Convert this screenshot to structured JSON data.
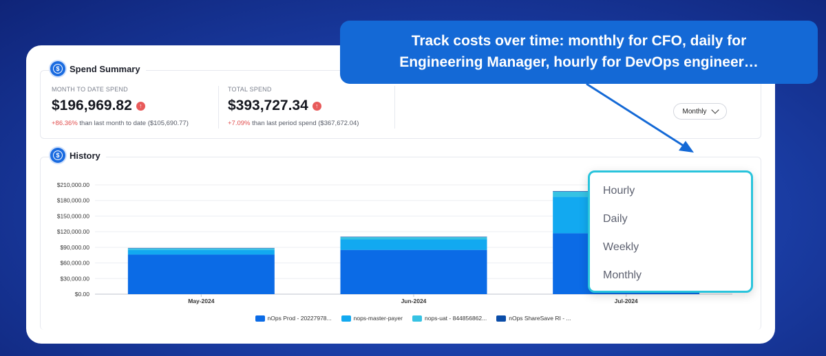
{
  "colors": {
    "series1": "#0b6be6",
    "series2": "#12a9f0",
    "series3": "#36c2e3",
    "series4": "#0a4ca8",
    "accent": "#1469d6",
    "menu_border": "#29c4dc",
    "negative": "#e14c4c"
  },
  "callout": {
    "line1": "Track costs over time: monthly for CFO, daily for",
    "line2": "Engineering Manager, hourly for DevOps engineer…"
  },
  "summary": {
    "title": "Spend Summary",
    "icon": "dollar-coin-icon",
    "month_to_date": {
      "label": "MONTH TO DATE SPEND",
      "value": "$196,969.82",
      "pct": "+86.36%",
      "text": " than last month to date ($105,690.77)"
    },
    "total": {
      "label": "TOTAL SPEND",
      "value": "$393,727.34",
      "pct": "+7.09%",
      "text": " than last period spend ($367,672.04)"
    }
  },
  "history": {
    "title": "History",
    "icon": "dollar-coin-icon",
    "granularity": "Monthly",
    "menu_items": [
      "Hourly",
      "Daily",
      "Weekly",
      "Monthly"
    ]
  },
  "chart_data": {
    "type": "bar",
    "stacked": true,
    "categories": [
      "May-2024",
      "Jun-2024",
      "Jul-2024"
    ],
    "series": [
      {
        "name": "nOps Prod - 20227978...",
        "values": [
          76000,
          85000,
          117000
        ]
      },
      {
        "name": "nops-master-payer",
        "values": [
          9000,
          20000,
          70000
        ]
      },
      {
        "name": "nops-uat - 844856862...",
        "values": [
          3000,
          4500,
          10000
        ]
      },
      {
        "name": "nOps ShareSave RI - ...",
        "values": [
          700,
          800,
          1000
        ]
      }
    ],
    "yticks": [
      "$0.00",
      "$30,000.00",
      "$60,000.00",
      "$90,000.00",
      "$120,000.00",
      "$150,000.00",
      "$180,000.00",
      "$210,000.00"
    ],
    "ylim": [
      0,
      210000
    ],
    "grid": true,
    "legend": "bottom"
  }
}
